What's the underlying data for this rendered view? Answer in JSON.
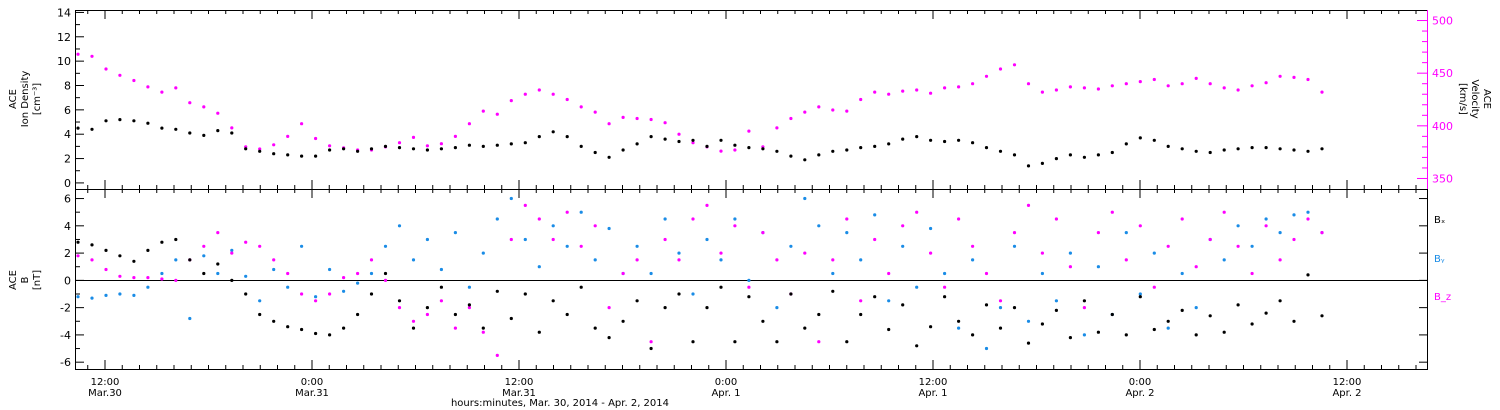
{
  "colors": {
    "black": "#000000",
    "magenta": "#ff00ff",
    "blue": "#1a8ce6"
  },
  "chart_data": [
    {
      "type": "scatter",
      "panel": "top",
      "ylabel_left": [
        "ACE",
        "Ion Density",
        "[cm⁻³]"
      ],
      "ylabel_right": [
        "ACE",
        "Velocity",
        "[km/s]"
      ],
      "ylim_left": [
        -0.5,
        14.2
      ],
      "ylim_right": [
        340,
        510
      ],
      "yticks_left": [
        "0",
        "2",
        "4",
        "6",
        "8",
        "10",
        "12",
        "14"
      ],
      "yticks_right": [
        "350",
        "400",
        "450",
        "500"
      ],
      "series": [
        {
          "color": "black",
          "axis": "left",
          "x": [
            0,
            1,
            2,
            3,
            4,
            5,
            6,
            7,
            8,
            9,
            10,
            11,
            12,
            13,
            14,
            15,
            16,
            17,
            18,
            19,
            20,
            21,
            22,
            23,
            24,
            25,
            26,
            27,
            28,
            29,
            30,
            31,
            32,
            33,
            34,
            35,
            36,
            37,
            38,
            39,
            40,
            41,
            42,
            43,
            44,
            45,
            46,
            47,
            48,
            49,
            50,
            51,
            52,
            53,
            54,
            55,
            56,
            57,
            58,
            59,
            60,
            61,
            62,
            63,
            64,
            65,
            66,
            67,
            68,
            69,
            70,
            71,
            72,
            73,
            74,
            75,
            76,
            77,
            78,
            79,
            80,
            81,
            82,
            83,
            84,
            85,
            86,
            87,
            88,
            89
          ],
          "values": [
            4.5,
            4.4,
            5.1,
            5.2,
            5.1,
            4.9,
            4.5,
            4.4,
            4.1,
            3.9,
            4.3,
            4.1,
            2.8,
            2.6,
            2.4,
            2.3,
            2.2,
            2.2,
            2.7,
            2.8,
            2.6,
            2.8,
            3.0,
            2.9,
            2.8,
            2.7,
            2.8,
            2.9,
            3.1,
            3.0,
            3.1,
            3.2,
            3.3,
            3.8,
            4.2,
            3.8,
            3.0,
            2.5,
            2.1,
            2.7,
            3.2,
            3.8,
            3.6,
            3.4,
            3.5,
            3.0,
            3.5,
            3.1,
            2.9,
            2.8,
            2.6,
            2.2,
            1.9,
            2.3,
            2.6,
            2.7,
            2.9,
            3.0,
            3.2,
            3.6,
            3.8,
            3.5,
            3.4,
            3.5,
            3.3,
            2.9,
            2.6,
            2.3,
            1.4,
            1.6,
            2.0,
            2.3,
            2.1,
            2.3,
            2.5,
            3.2,
            3.7,
            3.5,
            3.0,
            2.8,
            2.6,
            2.5,
            2.7,
            2.8,
            2.9,
            2.9,
            2.8,
            2.7,
            2.6,
            2.8
          ]
        },
        {
          "color": "magenta",
          "axis": "right",
          "x": [
            0,
            1,
            2,
            3,
            4,
            5,
            6,
            7,
            8,
            9,
            10,
            11,
            12,
            13,
            14,
            15,
            16,
            17,
            18,
            19,
            20,
            21,
            22,
            23,
            24,
            25,
            26,
            27,
            28,
            29,
            30,
            31,
            32,
            33,
            34,
            35,
            36,
            37,
            38,
            39,
            40,
            41,
            42,
            43,
            44,
            45,
            46,
            47,
            48,
            49,
            50,
            51,
            52,
            53,
            54,
            55,
            56,
            57,
            58,
            59,
            60,
            61,
            62,
            63,
            64,
            65,
            66,
            67,
            68,
            69,
            70,
            71,
            72,
            73,
            74,
            75,
            76,
            77,
            78,
            79,
            80,
            81,
            82,
            83,
            84,
            85,
            86,
            87,
            88,
            89
          ],
          "values": [
            468,
            466,
            454,
            448,
            443,
            437,
            432,
            436,
            422,
            418,
            412,
            398,
            380,
            378,
            382,
            390,
            402,
            388,
            381,
            379,
            377,
            377,
            380,
            384,
            389,
            381,
            383,
            390,
            402,
            414,
            411,
            424,
            430,
            434,
            430,
            425,
            418,
            413,
            402,
            408,
            407,
            406,
            403,
            392,
            384,
            380,
            376,
            377,
            395,
            380,
            398,
            407,
            413,
            418,
            415,
            414,
            425,
            432,
            430,
            433,
            434,
            431,
            436,
            437,
            440,
            447,
            454,
            458,
            440,
            432,
            434,
            437,
            436,
            435,
            438,
            440,
            442,
            444,
            438,
            440,
            445,
            440,
            436,
            434,
            438,
            441,
            447,
            446,
            444,
            432
          ]
        }
      ]
    },
    {
      "type": "scatter",
      "panel": "bottom",
      "ylabel_left": [
        "ACE",
        "B",
        "[nT]"
      ],
      "ylim": [
        -6.5,
        6.7
      ],
      "yticks": [
        "-6",
        "-4",
        "-2",
        "0",
        "2",
        "4",
        "6"
      ],
      "legend": [
        "Bₓ",
        "Bᵧ",
        "B_z"
      ],
      "legend_position": "right",
      "xlabel": "hours:minutes, Mar. 30, 2014 - Apr. 2, 2014",
      "xtick_labels": [
        {
          "time": "12:00",
          "date": "Mar.30"
        },
        {
          "time": "0:00",
          "date": "Mar.31"
        },
        {
          "time": "12:00",
          "date": "Mar.31"
        },
        {
          "time": "0:00",
          "date": "Apr. 1"
        },
        {
          "time": "12:00",
          "date": "Apr. 1"
        },
        {
          "time": "0:00",
          "date": "Apr. 2"
        },
        {
          "time": "12:00",
          "date": "Apr. 2"
        }
      ],
      "series": [
        {
          "name": "Bₓ",
          "color": "black",
          "x": [
            0,
            1,
            2,
            3,
            4,
            5,
            6,
            7,
            8,
            9,
            10,
            11,
            12,
            13,
            14,
            15,
            16,
            17,
            18,
            19,
            20,
            21,
            22,
            23,
            24,
            25,
            26,
            27,
            28,
            29,
            30,
            31,
            32,
            33,
            34,
            35,
            36,
            37,
            38,
            39,
            40,
            41,
            42,
            43,
            44,
            45,
            46,
            47,
            48,
            49,
            50,
            51,
            52,
            53,
            54,
            55,
            56,
            57,
            58,
            59,
            60,
            61,
            62,
            63,
            64,
            65,
            66,
            67,
            68,
            69,
            70,
            71,
            72,
            73,
            74,
            75,
            76,
            77,
            78,
            79,
            80,
            81,
            82,
            83,
            84,
            85,
            86,
            87,
            88,
            89
          ],
          "values": [
            2.8,
            2.6,
            2.2,
            1.8,
            1.4,
            2.2,
            2.8,
            3.0,
            1.5,
            0.5,
            1.2,
            0.0,
            -1.0,
            -2.5,
            -3.0,
            -3.4,
            -3.6,
            -3.9,
            -4.0,
            -3.5,
            -2.5,
            -1.0,
            0.5,
            -1.5,
            -3.5,
            -2.0,
            -0.5,
            -2.5,
            -1.8,
            -3.5,
            -0.8,
            -2.8,
            -1.0,
            -3.8,
            -1.5,
            -2.5,
            -0.5,
            -3.5,
            -4.2,
            -3.0,
            -1.5,
            -5.0,
            -2.0,
            -1.0,
            -4.5,
            -2.0,
            -0.5,
            -4.5,
            -1.2,
            -3.0,
            -4.5,
            -1.0,
            -3.5,
            -2.5,
            -0.8,
            -4.5,
            -2.5,
            -1.2,
            -3.6,
            -1.8,
            -4.8,
            -3.4,
            -1.2,
            -3.0,
            -4.0,
            -1.8,
            -3.5,
            -2.0,
            -4.6,
            -3.2,
            -2.2,
            -4.2,
            -1.5,
            -3.8,
            -2.5,
            -4.0,
            -1.2,
            -3.6,
            -3.0,
            -2.2,
            -4.0,
            -2.6,
            -3.8,
            -1.8,
            -3.2,
            -2.4,
            -1.5,
            -3.0,
            0.4,
            -2.6
          ]
        },
        {
          "name": "Bᵧ",
          "color": "blue",
          "x": [
            0,
            1,
            2,
            3,
            4,
            5,
            6,
            7,
            8,
            9,
            10,
            11,
            12,
            13,
            14,
            15,
            16,
            17,
            18,
            19,
            20,
            21,
            22,
            23,
            24,
            25,
            26,
            27,
            28,
            29,
            30,
            31,
            32,
            33,
            34,
            35,
            36,
            37,
            38,
            39,
            40,
            41,
            42,
            43,
            44,
            45,
            46,
            47,
            48,
            49,
            50,
            51,
            52,
            53,
            54,
            55,
            56,
            57,
            58,
            59,
            60,
            61,
            62,
            63,
            64,
            65,
            66,
            67,
            68,
            69,
            70,
            71,
            72,
            73,
            74,
            75,
            76,
            77,
            78,
            79,
            80,
            81,
            82,
            83,
            84,
            85,
            86,
            87,
            88,
            89
          ],
          "values": [
            -1.2,
            -1.3,
            -1.1,
            -1.0,
            -1.1,
            -0.5,
            0.5,
            1.5,
            -2.8,
            1.8,
            0.5,
            2.2,
            0.3,
            -1.5,
            0.8,
            -0.5,
            2.5,
            -1.2,
            0.8,
            -0.8,
            -0.2,
            0.5,
            2.5,
            4.0,
            1.5,
            3.0,
            0.8,
            3.5,
            -0.5,
            2.0,
            4.5,
            6.0,
            3.0,
            1.0,
            4.0,
            2.5,
            5.0,
            1.5,
            3.8,
            0.5,
            2.5,
            0.5,
            4.5,
            2.0,
            -1.0,
            3.0,
            1.5,
            4.5,
            0.0,
            3.5,
            -2.0,
            2.5,
            6.0,
            4.0,
            0.5,
            3.5,
            1.5,
            4.8,
            -1.5,
            2.5,
            -0.5,
            3.8,
            0.5,
            -3.5,
            1.5,
            -5.0,
            -2.0,
            2.5,
            -3.0,
            0.5,
            -1.5,
            2.0,
            -4.0,
            1.0,
            -2.5,
            3.5,
            -1.0,
            2.0,
            -3.5,
            0.5,
            -2.0,
            3.0,
            1.5,
            4.0,
            2.5,
            4.5,
            3.5,
            4.8,
            5.0,
            3.5
          ]
        },
        {
          "name": "B_z",
          "color": "magenta",
          "x": [
            0,
            1,
            2,
            3,
            4,
            5,
            6,
            7,
            8,
            9,
            10,
            11,
            12,
            13,
            14,
            15,
            16,
            17,
            18,
            19,
            20,
            21,
            22,
            23,
            24,
            25,
            26,
            27,
            28,
            29,
            30,
            31,
            32,
            33,
            34,
            35,
            36,
            37,
            38,
            39,
            40,
            41,
            42,
            43,
            44,
            45,
            46,
            47,
            48,
            49,
            50,
            51,
            52,
            53,
            54,
            55,
            56,
            57,
            58,
            59,
            60,
            61,
            62,
            63,
            64,
            65,
            66,
            67,
            68,
            69,
            70,
            71,
            72,
            73,
            74,
            75,
            76,
            77,
            78,
            79,
            80,
            81,
            82,
            83,
            84,
            85,
            86,
            87,
            88,
            89
          ],
          "values": [
            1.8,
            1.5,
            0.8,
            0.3,
            0.2,
            0.2,
            0.1,
            0.0,
            1.5,
            2.5,
            3.5,
            2.0,
            2.8,
            2.5,
            1.5,
            0.5,
            -1.0,
            -1.5,
            -1.0,
            0.2,
            0.5,
            1.5,
            0.0,
            -2.0,
            -3.0,
            -2.5,
            -1.5,
            -3.5,
            -2.0,
            -3.8,
            -5.5,
            3.0,
            5.5,
            4.5,
            3.0,
            5.0,
            2.5,
            4.0,
            -2.0,
            0.5,
            1.5,
            -4.5,
            3.0,
            1.5,
            4.5,
            5.5,
            2.0,
            4.0,
            -0.5,
            3.5,
            1.5,
            -1.0,
            2.0,
            -4.5,
            1.5,
            4.5,
            -1.5,
            3.0,
            0.5,
            4.0,
            5.0,
            2.0,
            -0.5,
            4.5,
            2.5,
            0.5,
            -1.5,
            3.5,
            5.5,
            2.0,
            4.5,
            1.0,
            -2.0,
            3.5,
            5.0,
            1.5,
            4.0,
            -0.5,
            2.5,
            4.5,
            1.0,
            3.0,
            5.0,
            2.5,
            0.5,
            4.0,
            1.5,
            3.0,
            4.5,
            3.5
          ]
        }
      ]
    }
  ]
}
